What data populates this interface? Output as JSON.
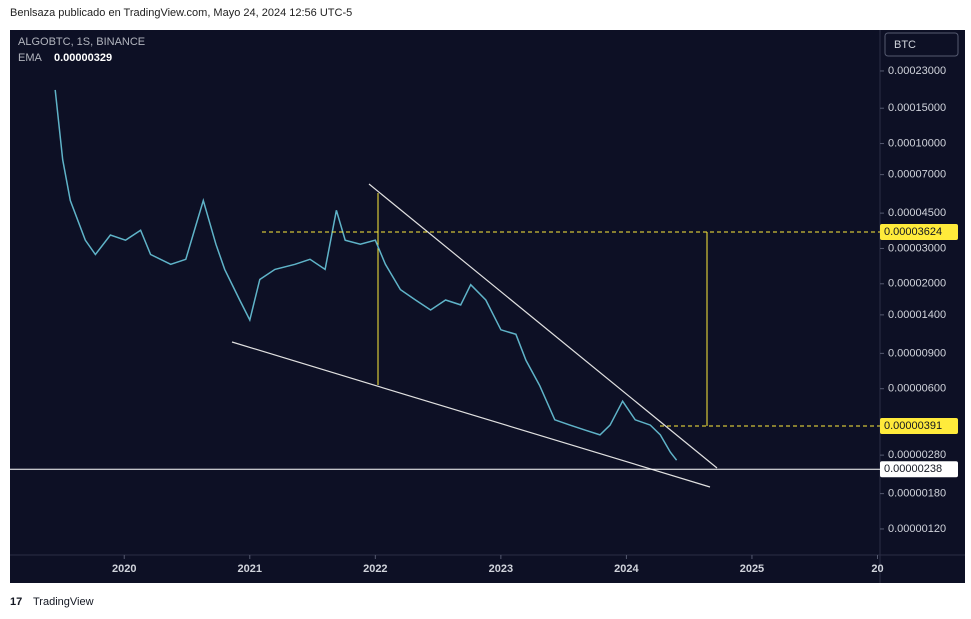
{
  "header": {
    "byline": "Benlsaza publicado en TradingView.com, Mayo 24, 2024 12:56 UTC-5"
  },
  "footer": {
    "brand": "TradingView"
  },
  "currency_button": "BTC",
  "chart_data": {
    "type": "line",
    "log_scale": true,
    "legend": {
      "symbol": "ALGOBTC, 1S, BINANCE",
      "ema_name": "EMA",
      "ema_value": "0.00000329"
    },
    "x": [
      2019.45,
      2019.51,
      2019.57,
      2019.69,
      2019.77,
      2019.89,
      2020.01,
      2020.13,
      2020.21,
      2020.37,
      2020.49,
      2020.57,
      2020.63,
      2020.73,
      2020.8,
      2020.92,
      2021.0,
      2021.08,
      2021.2,
      2021.36,
      2021.48,
      2021.6,
      2021.69,
      2021.76,
      2021.88,
      2022.0,
      2022.08,
      2022.2,
      2022.32,
      2022.44,
      2022.56,
      2022.68,
      2022.76,
      2022.88,
      2023.0,
      2023.12,
      2023.2,
      2023.31,
      2023.43,
      2023.55,
      2023.67,
      2023.79,
      2023.87,
      2023.97,
      2024.07,
      2024.19,
      2024.27,
      2024.35,
      2024.4
    ],
    "series": [
      {
        "name": "ALGOBTC, 1S, BINANCE",
        "color": "#5fb3c8",
        "values": [
          0.000185,
          8.3e-05,
          5.2e-05,
          3.3e-05,
          2.8e-05,
          3.5e-05,
          3.3e-05,
          3.7e-05,
          2.8e-05,
          2.5e-05,
          2.65e-05,
          3.9e-05,
          5.2e-05,
          3.15e-05,
          2.36e-05,
          1.66e-05,
          1.32e-05,
          2.1e-05,
          2.36e-05,
          2.5e-05,
          2.65e-05,
          2.36e-05,
          4.65e-05,
          3.3e-05,
          3.15e-05,
          3.3e-05,
          2.5e-05,
          1.87e-05,
          1.66e-05,
          1.48e-05,
          1.66e-05,
          1.57e-05,
          1.98e-05,
          1.66e-05,
          1.18e-05,
          1.12e-05,
          8.3e-06,
          6.2e-06,
          4.2e-06,
          3.95e-06,
          3.73e-06,
          3.53e-06,
          3.95e-06,
          5.2e-06,
          4.2e-06,
          3.95e-06,
          3.53e-06,
          2.9e-06,
          2.64e-06
        ]
      }
    ],
    "xlim": [
      2019.09,
      2026.02
    ],
    "xticks": [
      2020,
      2021,
      2022,
      2023,
      2024,
      2025,
      {
        "value": 2026,
        "label": "20"
      }
    ],
    "ylim": [
      8.9e-07,
      0.000368
    ],
    "yticks": [
      {
        "value": 0.00023,
        "label": "0.00023000"
      },
      {
        "value": 0.00015,
        "label": "0.00015000"
      },
      {
        "value": 0.0001,
        "label": "0.00010000"
      },
      {
        "value": 7e-05,
        "label": "0.00007000"
      },
      {
        "value": 4.5e-05,
        "label": "0.00004500"
      },
      {
        "value": 3e-05,
        "label": "0.00003000"
      },
      {
        "value": 2e-05,
        "label": "0.00002000"
      },
      {
        "value": 1.4e-05,
        "label": "0.00001400"
      },
      {
        "value": 9e-06,
        "label": "0.00000900"
      },
      {
        "value": 6e-06,
        "label": "0.00000600"
      },
      {
        "value": 2.8e-06,
        "label": "0.00000280"
      },
      {
        "value": 1.8e-06,
        "label": "0.00000180"
      },
      {
        "value": 1.2e-06,
        "label": "0.00000120"
      }
    ],
    "price_labels": [
      {
        "value": 3.624e-05,
        "label": "0.00003624",
        "color": "#ffeb3b"
      },
      {
        "value": 3.91e-06,
        "label": "0.00000391",
        "color": "#ffeb3b"
      },
      {
        "value": 2.38e-06,
        "label": "0.00000238",
        "color": "#ffffff"
      }
    ]
  }
}
